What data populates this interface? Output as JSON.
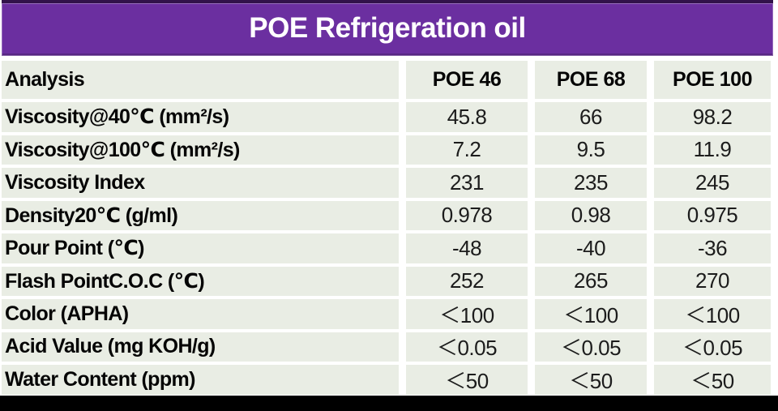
{
  "title": "POE Refrigeration oil",
  "colors": {
    "banner_bg": "#6B2FA0",
    "banner_text": "#FFFFFF",
    "cell_bg": "#E9EDE4",
    "label_text": "#050505",
    "value_text": "#1C1C1C",
    "bottom_bar": "#000000"
  },
  "chart_data": {
    "type": "table",
    "title": "POE Refrigeration oil",
    "columns": [
      "Analysis",
      "POE 46",
      "POE 68",
      "POE 100"
    ],
    "rows": [
      {
        "label": "Viscosity@40℃ (mm²/s)",
        "values": [
          "45.8",
          "66",
          "98.2"
        ]
      },
      {
        "label": "Viscosity@100℃ (mm²/s)",
        "values": [
          "7.2",
          "9.5",
          "11.9"
        ]
      },
      {
        "label": "Viscosity Index",
        "values": [
          "231",
          "235",
          "245"
        ]
      },
      {
        "label": "Density20℃ (g/ml)",
        "values": [
          "0.978",
          "0.98",
          "0.975"
        ]
      },
      {
        "label": "Pour Point (℃)",
        "values": [
          "-48",
          "-40",
          "-36"
        ]
      },
      {
        "label": "Flash PointC.O.C (℃)",
        "values": [
          "252",
          "265",
          "270"
        ]
      },
      {
        "label": "Color (APHA)",
        "values": [
          "＜100",
          "＜100",
          "＜100"
        ]
      },
      {
        "label": "Acid Value (mg KOH/g)",
        "values": [
          "＜0.05",
          "＜0.05",
          "＜0.05"
        ]
      },
      {
        "label": "Water Content (ppm)",
        "values": [
          "＜50",
          "＜50",
          "＜50"
        ]
      }
    ]
  }
}
